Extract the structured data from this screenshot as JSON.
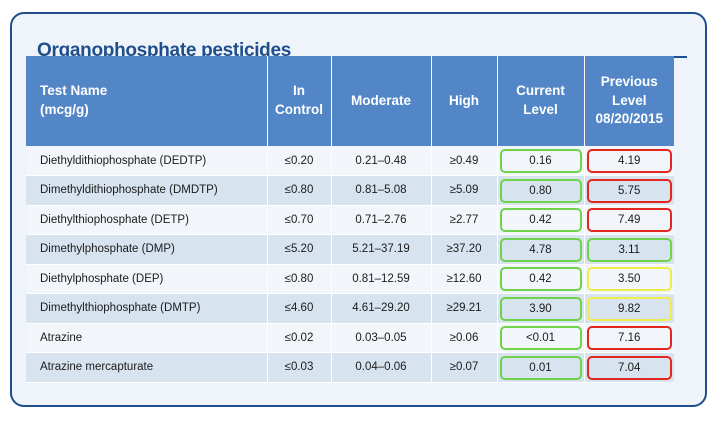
{
  "title": "Organophosphate pesticides",
  "colors": {
    "frame": "#1f4e8c",
    "header_bg": "#5286c7",
    "row_light": "#f2f6fb",
    "row_dark": "#d7e3ef",
    "status_green": "#6fd24a",
    "status_red": "#e2271e",
    "status_yellow": "#eded4d"
  },
  "table": {
    "headers": {
      "name_line1": "Test Name",
      "name_line2": "(mcg/g)",
      "control_line1": "In",
      "control_line2": "Control",
      "moderate": "Moderate",
      "high": "High",
      "current_line1": "Current",
      "current_line2": "Level",
      "previous_line1": "Previous",
      "previous_line2": "Level",
      "previous_line3": "08/20/2015"
    },
    "rows": [
      {
        "name": "Diethyldithiophosphate (DEDTP)",
        "control": "≤0.20",
        "moderate": "0.21–0.48",
        "high": "≥0.49",
        "current": "0.16",
        "current_status": "green",
        "previous": "4.19",
        "previous_status": "red"
      },
      {
        "name": "Dimethyldithiophosphate (DMDTP)",
        "control": "≤0.80",
        "moderate": "0.81–5.08",
        "high": "≥5.09",
        "current": "0.80",
        "current_status": "green",
        "previous": "5.75",
        "previous_status": "red"
      },
      {
        "name": "Diethylthiophosphate (DETP)",
        "control": "≤0.70",
        "moderate": "0.71–2.76",
        "high": "≥2.77",
        "current": "0.42",
        "current_status": "green",
        "previous": "7.49",
        "previous_status": "red"
      },
      {
        "name": "Dimethylphosphate (DMP)",
        "control": "≤5.20",
        "moderate": "5.21–37.19",
        "high": "≥37.20",
        "current": "4.78",
        "current_status": "green",
        "previous": "3.11",
        "previous_status": "green"
      },
      {
        "name": "Diethylphosphate (DEP)",
        "control": "≤0.80",
        "moderate": "0.81–12.59",
        "high": "≥12.60",
        "current": "0.42",
        "current_status": "green",
        "previous": "3.50",
        "previous_status": "yellow"
      },
      {
        "name": "Dimethylthiophosphate (DMTP)",
        "control": "≤4.60",
        "moderate": "4.61–29.20",
        "high": "≥29.21",
        "current": "3.90",
        "current_status": "green",
        "previous": "9.82",
        "previous_status": "yellow"
      },
      {
        "name": "Atrazine",
        "control": "≤0.02",
        "moderate": "0.03–0.05",
        "high": "≥0.06",
        "current": "<0.01",
        "current_status": "green",
        "previous": "7.16",
        "previous_status": "red"
      },
      {
        "name": "Atrazine mercapturate",
        "control": "≤0.03",
        "moderate": "0.04–0.06",
        "high": "≥0.07",
        "current": "0.01",
        "current_status": "green",
        "previous": "7.04",
        "previous_status": "red"
      }
    ]
  }
}
